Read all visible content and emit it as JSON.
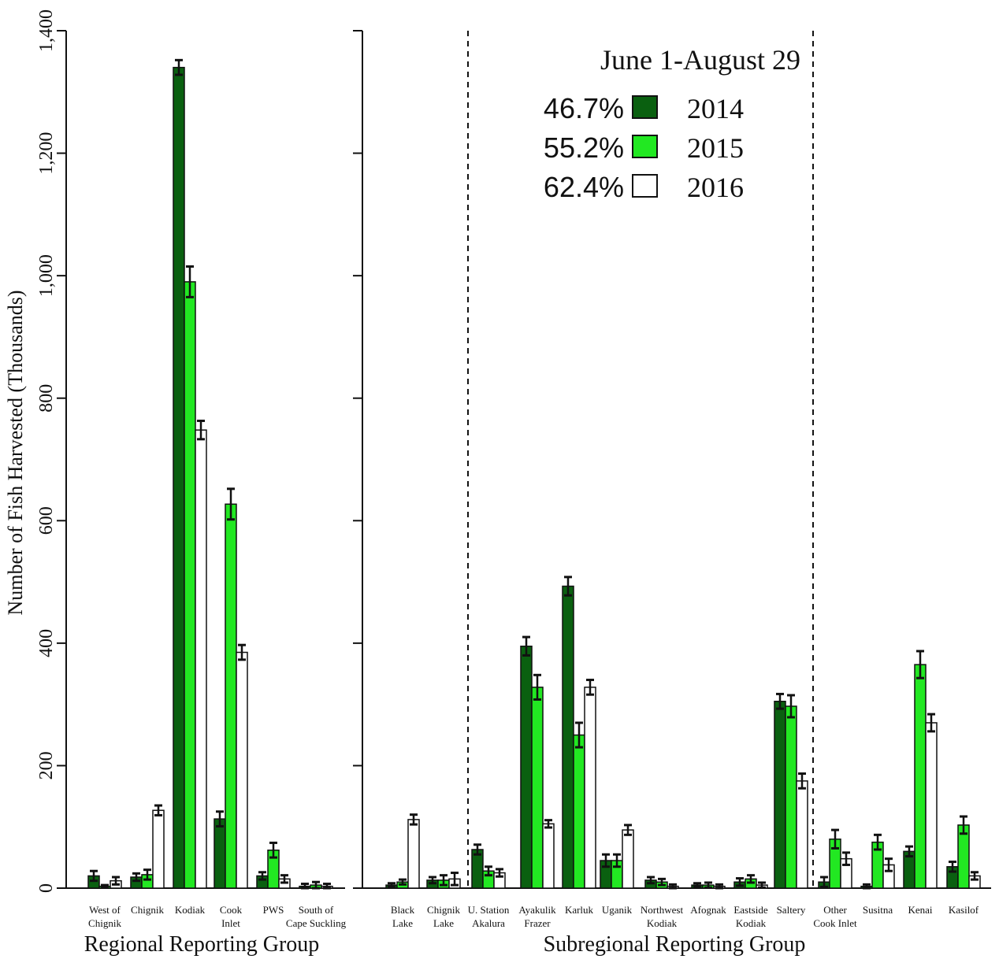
{
  "chart_data": {
    "type": "bar",
    "ylabel": "Number of Fish Harvested (Thousands)",
    "ylim": [
      0,
      1400
    ],
    "yticks": [
      0,
      200,
      400,
      600,
      800,
      1000,
      1200,
      1400
    ],
    "ytick_labels": [
      "0",
      "200",
      "400",
      "600",
      "800",
      "1,000",
      "1,200",
      "1,400"
    ],
    "legend": {
      "title": "June 1-August 29",
      "placement": "top-right",
      "entries": [
        {
          "pct": "46.7%",
          "year": "2014",
          "color": "#0a6010"
        },
        {
          "pct": "55.2%",
          "year": "2015",
          "color": "#22e822"
        },
        {
          "pct": "62.4%",
          "year": "2016",
          "color": "#ffffff"
        }
      ]
    },
    "panels": [
      {
        "xlabel": "Regional Reporting Group",
        "categories": [
          {
            "lines": [
              "West of",
              "Chignik"
            ],
            "values": [
              20,
              3,
              12
            ],
            "errors": [
              8,
              2,
              6
            ]
          },
          {
            "lines": [
              "Chignik",
              ""
            ],
            "values": [
              18,
              22,
              127
            ],
            "errors": [
              6,
              8,
              8
            ]
          },
          {
            "lines": [
              "Kodiak",
              ""
            ],
            "values": [
              1340,
              990,
              748
            ],
            "errors": [
              12,
              25,
              15
            ]
          },
          {
            "lines": [
              "Cook",
              "Inlet"
            ],
            "values": [
              113,
              627,
              385
            ],
            "errors": [
              12,
              25,
              12
            ]
          },
          {
            "lines": [
              "PWS",
              ""
            ],
            "values": [
              20,
              62,
              15
            ],
            "errors": [
              6,
              12,
              6
            ]
          },
          {
            "lines": [
              "South of",
              "Cape Suckling"
            ],
            "values": [
              3,
              5,
              3
            ],
            "errors": [
              4,
              5,
              4
            ]
          }
        ]
      },
      {
        "xlabel": "Subregional Reporting Group",
        "categories": [
          {
            "lines": [
              "Black",
              "Lake"
            ],
            "values": [
              5,
              10,
              112
            ],
            "errors": [
              3,
              4,
              8
            ]
          },
          {
            "lines": [
              "Chignik",
              "Lake"
            ],
            "values": [
              13,
              13,
              15
            ],
            "errors": [
              5,
              8,
              10
            ]
          },
          {
            "lines": [
              "U. Station",
              "Akalura"
            ],
            "values": [
              63,
              28,
              25
            ],
            "errors": [
              8,
              7,
              6
            ]
          },
          {
            "lines": [
              "Ayakulik",
              "Frazer"
            ],
            "values": [
              395,
              328,
              105
            ],
            "errors": [
              15,
              20,
              6
            ]
          },
          {
            "lines": [
              "Karluk",
              ""
            ],
            "values": [
              493,
              250,
              328
            ],
            "errors": [
              15,
              20,
              12
            ]
          },
          {
            "lines": [
              "Uganik",
              ""
            ],
            "values": [
              45,
              45,
              95
            ],
            "errors": [
              10,
              10,
              8
            ]
          },
          {
            "lines": [
              "Northwest",
              "Kodiak"
            ],
            "values": [
              13,
              10,
              3
            ],
            "errors": [
              5,
              5,
              3
            ]
          },
          {
            "lines": [
              "Afognak",
              ""
            ],
            "values": [
              5,
              5,
              3
            ],
            "errors": [
              3,
              4,
              3
            ]
          },
          {
            "lines": [
              "Eastside",
              "Kodiak"
            ],
            "values": [
              10,
              15,
              5
            ],
            "errors": [
              6,
              6,
              4
            ]
          },
          {
            "lines": [
              "Saltery",
              ""
            ],
            "values": [
              305,
              297,
              175
            ],
            "errors": [
              12,
              18,
              12
            ]
          },
          {
            "lines": [
              "Other",
              "Cook Inlet"
            ],
            "values": [
              10,
              80,
              48
            ],
            "errors": [
              8,
              15,
              10
            ]
          },
          {
            "lines": [
              "Susitna",
              ""
            ],
            "values": [
              3,
              75,
              38
            ],
            "errors": [
              3,
              12,
              10
            ]
          },
          {
            "lines": [
              "Kenai",
              ""
            ],
            "values": [
              60,
              365,
              270
            ],
            "errors": [
              8,
              22,
              14
            ]
          },
          {
            "lines": [
              "Kasilof",
              ""
            ],
            "values": [
              35,
              103,
              20
            ],
            "errors": [
              8,
              14,
              6
            ]
          }
        ]
      }
    ]
  }
}
